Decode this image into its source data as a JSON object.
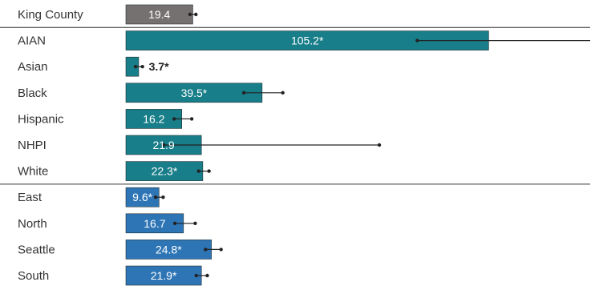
{
  "chart_data": {
    "type": "bar",
    "orientation": "horizontal",
    "title": "",
    "xlabel": "",
    "ylabel": "",
    "xlim": [
      0,
      125
    ],
    "grid": false,
    "legend": "none",
    "colors": {
      "overall": "#767171",
      "race": "#187E89",
      "region": "#2E75B6",
      "label_inside": "#ffffff",
      "label_outside": "#222222"
    },
    "groups": [
      {
        "name": "",
        "color_key": "overall",
        "rows": [
          {
            "category": "King County",
            "value": 19.4,
            "label": "19.4",
            "ci": [
              18.6,
              20.3
            ]
          }
        ]
      },
      {
        "name": "",
        "color_key": "race",
        "rows": [
          {
            "category": "AIAN",
            "value": 105.2,
            "label": "105.2*",
            "ci": [
              84.5,
              149
            ]
          },
          {
            "category": "Asian",
            "value": 3.7,
            "label": "3.7*",
            "ci": [
              2.8,
              4.8
            ]
          },
          {
            "category": "Black",
            "value": 39.5,
            "label": "39.5*",
            "ci": [
              34.2,
              45.5
            ]
          },
          {
            "category": "Hispanic",
            "value": 16.2,
            "label": "16.2",
            "ci": [
              14.0,
              19.1
            ]
          },
          {
            "category": "NHPI",
            "value": 21.9,
            "label": "21.9",
            "ci": [
              11.0,
              73.5
            ]
          },
          {
            "category": "White",
            "value": 22.3,
            "label": "22.3*",
            "ci": [
              21.1,
              24.1
            ]
          }
        ]
      },
      {
        "name": "",
        "color_key": "region",
        "rows": [
          {
            "category": "East",
            "value": 9.6,
            "label": "9.6*",
            "ci": [
              8.6,
              10.8
            ]
          },
          {
            "category": "North",
            "value": 16.7,
            "label": "16.7",
            "ci": [
              14.2,
              20.1
            ]
          },
          {
            "category": "Seattle",
            "value": 24.8,
            "label": "24.8*",
            "ci": [
              23.1,
              27.6
            ]
          },
          {
            "category": "South",
            "value": 21.9,
            "label": "21.9*",
            "ci": [
              20.4,
              23.6
            ]
          }
        ]
      }
    ]
  }
}
